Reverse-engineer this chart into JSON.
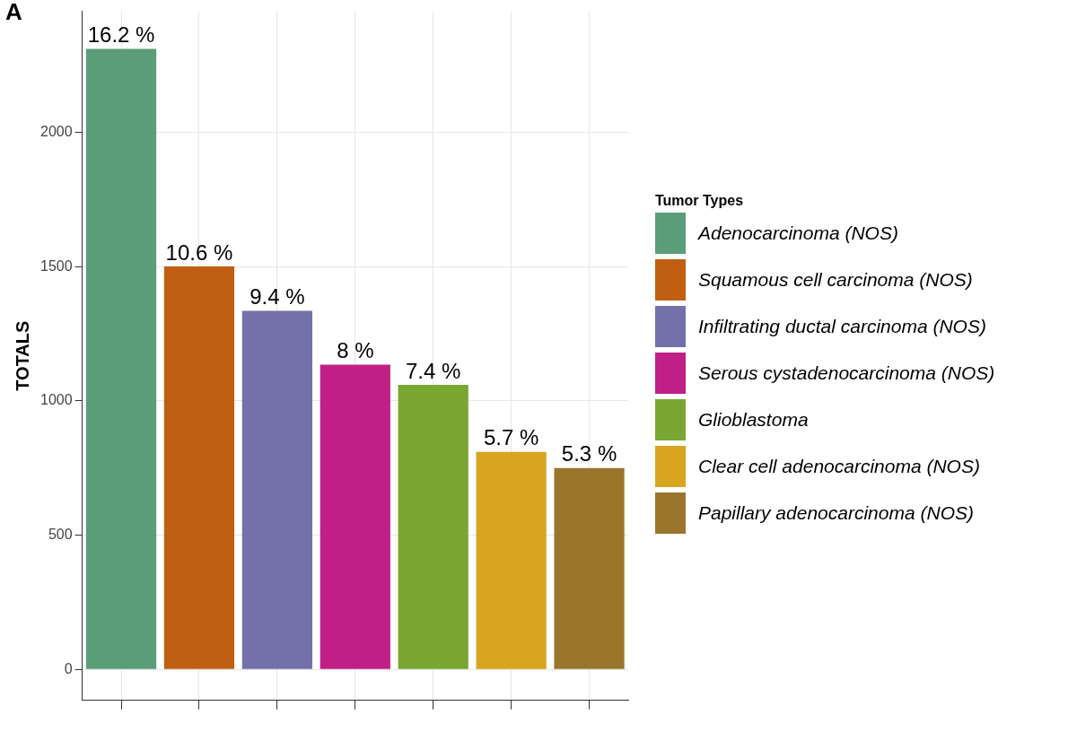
{
  "chart_data": {
    "type": "bar",
    "ylabel": "TOTALS",
    "legend_title": "Tumor Types",
    "legend": "right",
    "grid": true,
    "stacked": true,
    "categories": [
      null,
      null,
      null,
      null,
      null,
      null,
      null
    ],
    "ylim": [
      -115,
      2450
    ],
    "yticks": [
      0,
      500,
      1000,
      1500,
      2000
    ],
    "annotations": [
      "A",
      {
        "text": "16.2 %",
        "y": 2310
      },
      {
        "text": "10.6 %",
        "y": 1500
      },
      {
        "text": "9.4 %",
        "y": 1335
      },
      {
        "text": "8 %",
        "y": 1135
      },
      {
        "text": "7.4 %",
        "y": 1060
      },
      {
        "text": "5.7 %",
        "y": 810
      },
      {
        "text": "5.3 %",
        "y": 750
      }
    ],
    "series": [
      {
        "name": "Adenocarcinoma (NOS)",
        "color": "#5a9d78",
        "values": [
          2310,
          null,
          null,
          null,
          null,
          null,
          null
        ]
      },
      {
        "name": "Squamous cell carcinoma (NOS)",
        "color": "#c05f13",
        "values": [
          null,
          1500,
          null,
          null,
          null,
          null,
          null
        ]
      },
      {
        "name": "Infiltrating ductal carcinoma (NOS)",
        "color": "#7470aa",
        "values": [
          null,
          null,
          1335,
          null,
          null,
          null,
          null
        ]
      },
      {
        "name": "Serous cystadenocarcinoma (NOS)",
        "color": "#c02085",
        "values": [
          null,
          null,
          null,
          1135,
          null,
          null,
          null
        ]
      },
      {
        "name": "Glioblastoma",
        "color": "#7aa634",
        "values": [
          null,
          null,
          null,
          null,
          1060,
          null,
          null
        ]
      },
      {
        "name": "Clear cell adenocarcinoma (NOS)",
        "color": "#d8a521",
        "values": [
          null,
          null,
          null,
          null,
          null,
          810,
          null
        ]
      },
      {
        "name": "Papillary adenocarcinoma (NOS)",
        "color": "#9a762c",
        "values": [
          null,
          null,
          null,
          null,
          null,
          null,
          750
        ]
      }
    ]
  }
}
